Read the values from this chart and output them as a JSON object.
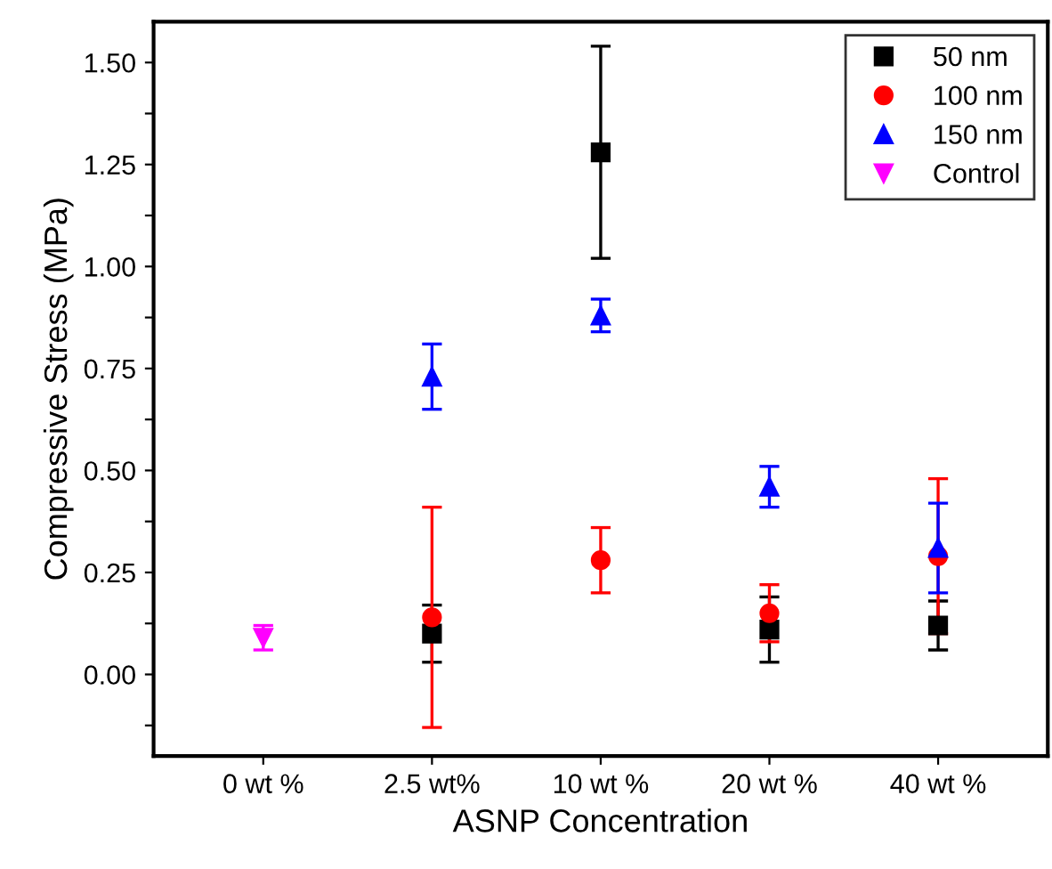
{
  "chart_data": {
    "type": "scatter",
    "xlabel": "ASNP Concentration",
    "ylabel": "Compressive Stress (MPa)",
    "categories": [
      "0 wt %",
      "2.5 wt%",
      "10 wt %",
      "20 wt %",
      "40 wt %"
    ],
    "series": [
      {
        "name": "50 nm",
        "color": "#000000",
        "marker": "square",
        "values": [
          null,
          0.1,
          1.28,
          0.11,
          0.12
        ],
        "errors": [
          null,
          0.07,
          0.26,
          0.08,
          0.06
        ]
      },
      {
        "name": "100 nm",
        "color": "#ff0000",
        "marker": "circle",
        "values": [
          null,
          0.14,
          0.28,
          0.15,
          0.29
        ],
        "errors": [
          null,
          0.27,
          0.08,
          0.07,
          0.19
        ]
      },
      {
        "name": "150 nm",
        "color": "#0000ff",
        "marker": "triangle",
        "values": [
          null,
          0.73,
          0.88,
          0.46,
          0.31
        ],
        "errors": [
          null,
          0.08,
          0.04,
          0.05,
          0.11
        ]
      },
      {
        "name": "Control",
        "color": "#ff00ff",
        "marker": "triangle_down",
        "values": [
          0.09,
          null,
          null,
          null,
          null
        ],
        "errors": [
          0.03,
          null,
          null,
          null,
          null
        ]
      }
    ],
    "ylim": [
      -0.2,
      1.6
    ],
    "yticks": [
      {
        "value": -0.125,
        "label": null
      },
      {
        "value": 0,
        "label": "0.00"
      },
      {
        "value": 0.125,
        "label": null
      },
      {
        "value": 0.25,
        "label": "0.25"
      },
      {
        "value": 0.375,
        "label": null
      },
      {
        "value": 0.5,
        "label": "0.50"
      },
      {
        "value": 0.625,
        "label": null
      },
      {
        "value": 0.75,
        "label": "0.75"
      },
      {
        "value": 0.875,
        "label": null
      },
      {
        "value": 1,
        "label": "1.00"
      },
      {
        "value": 1.125,
        "label": null
      },
      {
        "value": 1.25,
        "label": "1.25"
      },
      {
        "value": 1.375,
        "label": null
      },
      {
        "value": 1.5,
        "label": "1.50"
      }
    ],
    "grid": false,
    "legend": "top right"
  }
}
